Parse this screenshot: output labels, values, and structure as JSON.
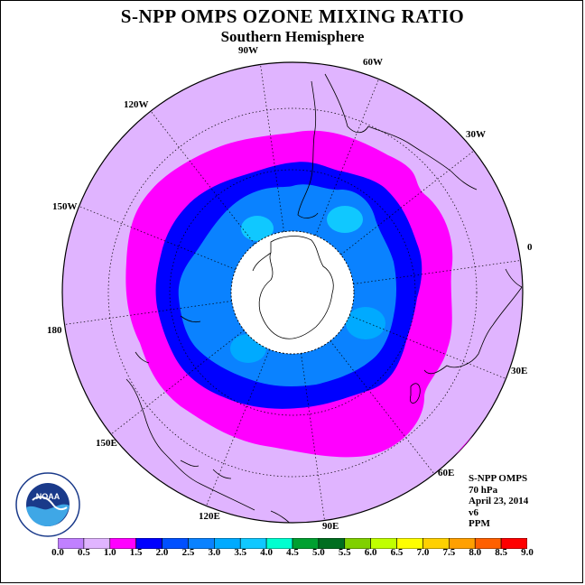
{
  "title": "S-NPP OMPS OZONE MIXING RATIO",
  "subtitle": "Southern Hemisphere",
  "longitude_labels": [
    "90W",
    "60W",
    "30W",
    "0",
    "30E",
    "60E",
    "90E",
    "120E",
    "150E",
    "180",
    "150W",
    "120W"
  ],
  "info": {
    "instrument": "S-NPP OMPS",
    "level": "70 hPa",
    "date": "April 23, 2014",
    "version": "v6",
    "units": "PPM"
  },
  "logo": {
    "text": "NOAA",
    "ring_text": "NATIONAL OCEANIC AND ATMOSPHERIC ADMINISTRATION · U.S. DEPARTMENT OF COMMERCE"
  },
  "colorbar": {
    "ticks": [
      "0.0",
      "0.5",
      "1.0",
      "1.5",
      "2.0",
      "2.5",
      "3.0",
      "3.5",
      "4.0",
      "4.5",
      "5.0",
      "5.5",
      "6.0",
      "6.5",
      "7.0",
      "7.5",
      "8.0",
      "8.5",
      "9.0"
    ],
    "colors": [
      "#c080ff",
      "#e0b4ff",
      "#ff00ff",
      "#0000ff",
      "#0050ff",
      "#0a82ff",
      "#00aaff",
      "#10c8ff",
      "#00ffd0",
      "#00a030",
      "#006e20",
      "#80d000",
      "#c0ff00",
      "#ffff00",
      "#ffd000",
      "#ffa000",
      "#ff6000",
      "#ff0000",
      "#8b5a2b"
    ]
  },
  "colors": {
    "outside": "#e0b4ff",
    "magenta": "#ff00ff",
    "blue": "#0000ff",
    "medblue": "#0a82ff",
    "cyan": "#10c8ff",
    "lightcyan": "#00aaff",
    "hole": "#ffffff"
  }
}
